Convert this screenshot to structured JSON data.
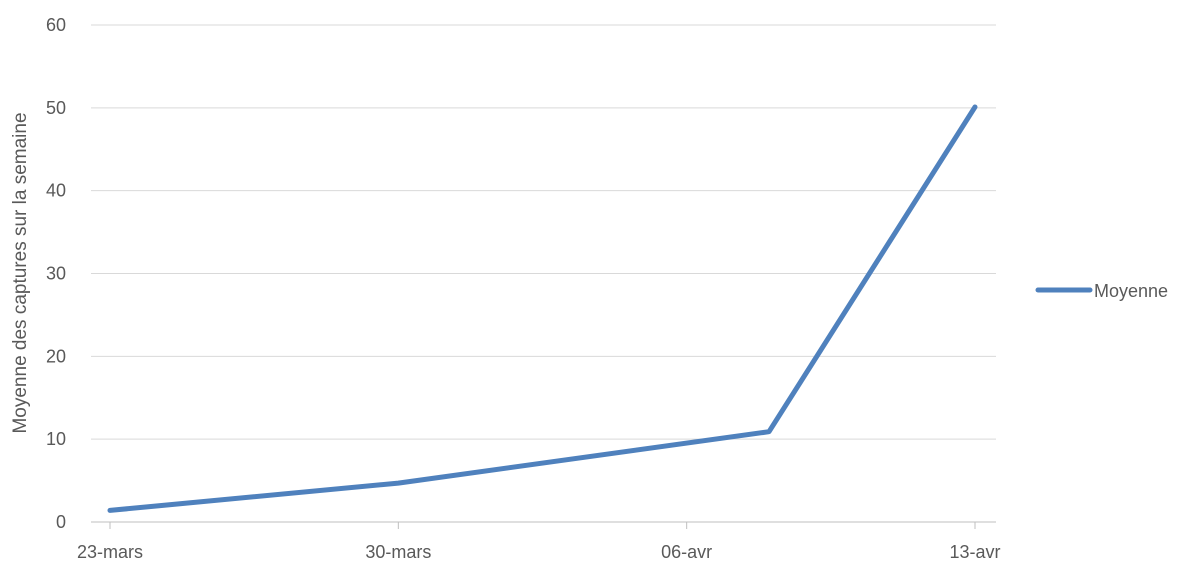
{
  "chart_data": {
    "type": "line",
    "x": [
      "2020-03-23",
      "2020-03-30",
      "2020-04-08",
      "2020-04-13"
    ],
    "series": [
      {
        "name": "Moyenne",
        "values": [
          1.4,
          4.7,
          10.9,
          50.1
        ],
        "color": "#4f81bd"
      }
    ],
    "x_tick_values": [
      "2020-03-23",
      "2020-03-30",
      "2020-04-06",
      "2020-04-13"
    ],
    "x_tick_labels": [
      "23-mars",
      "30-mars",
      "06-avr",
      "13-avr"
    ],
    "y_ticks": [
      "0",
      "10",
      "20",
      "30",
      "40",
      "50",
      "60"
    ],
    "ylabel": "Moyenne des captures sur la semaine",
    "xlabel": "",
    "title": "",
    "ylim": [
      0,
      60
    ],
    "xlim": [
      "2020-03-23",
      "2020-04-13"
    ],
    "grid": true,
    "legend_position": "right",
    "gridline_color": "#d9d9d9",
    "axis_color": "#bfbfbf",
    "text_color": "#595959"
  }
}
